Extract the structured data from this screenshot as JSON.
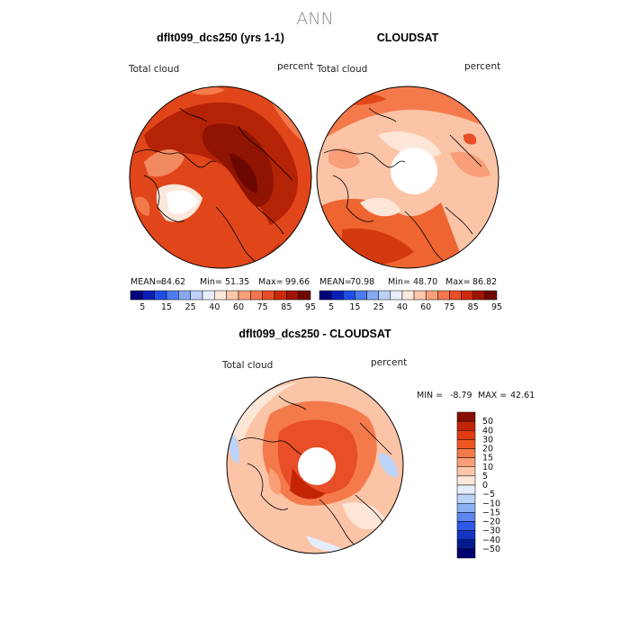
{
  "figure_title": "ANN",
  "panels": [
    {
      "title": "dflt099_dcs250 (yrs 1-1)",
      "left_label": "Total cloud",
      "right_label": "percent",
      "stats": {
        "mean_label": "MEAN=",
        "mean": "84.62",
        "min_label": "Min=",
        "min": "51.35",
        "max_label": "Max=",
        "max": "99.66"
      }
    },
    {
      "title": "CLOUDSAT",
      "left_label": "Total cloud",
      "right_label": "percent",
      "stats": {
        "mean_label": "MEAN=",
        "mean": "70.98",
        "min_label": "Min=",
        "min": "48.70",
        "max_label": "Max=",
        "max": "86.82"
      }
    },
    {
      "title": "dflt099_dcs250 - CLOUDSAT",
      "left_label": "Total cloud",
      "right_label": "percent",
      "stats": {
        "min_label": "MIN =",
        "min": "-8.79",
        "max_label": "MAX =",
        "max": "42.61"
      }
    }
  ],
  "colorbar_abs": {
    "labels": [
      "5",
      "15",
      "25",
      "40",
      "60",
      "75",
      "85",
      "95"
    ],
    "colors": [
      "#00007a",
      "#0b1fb8",
      "#1f4ee8",
      "#4d7bf0",
      "#86a9f4",
      "#bcd0f8",
      "#e6edfc",
      "#fde8dc",
      "#fcc6aa",
      "#fa9f79",
      "#f4764e",
      "#e84e27",
      "#cc2a0b",
      "#9e1402",
      "#6e0700"
    ]
  },
  "colorbar_diff": {
    "labels": [
      "50",
      "40",
      "30",
      "20",
      "15",
      "10",
      "5",
      "0",
      "−5",
      "−10",
      "−15",
      "−20",
      "−30",
      "−40",
      "−50"
    ],
    "colors": [
      "#8a0f00",
      "#c22405",
      "#e03c12",
      "#ef5722",
      "#f47a4c",
      "#f89e79",
      "#fbc6aa",
      "#fde8dc",
      "#e4edfb",
      "#bcd2f7",
      "#8cb0f3",
      "#5d86ee",
      "#2f59e6",
      "#1434c2",
      "#021a8e",
      "#000070"
    ]
  },
  "colors": {
    "title_gray": "#8a8a8a",
    "deep_red": "#a51d05",
    "red": "#d8390f",
    "orange": "#f1662f",
    "salmon": "#f79a72",
    "light_salmon": "#fbc4a6",
    "pale": "#fde6d8"
  }
}
